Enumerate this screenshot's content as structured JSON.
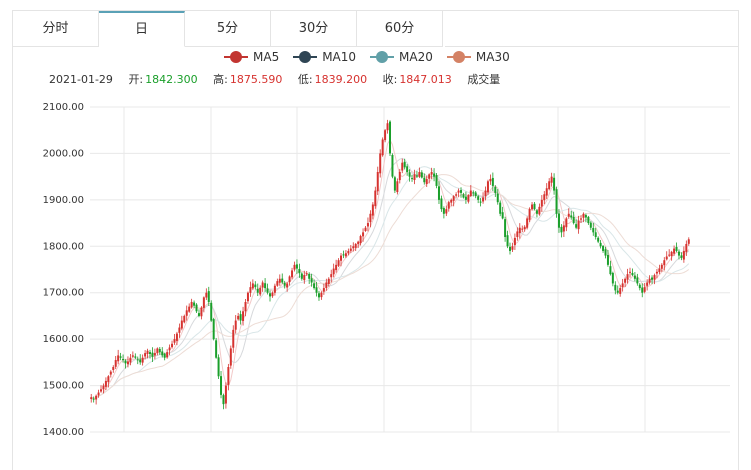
{
  "tabs": [
    {
      "label": "分时",
      "active": false
    },
    {
      "label": "日",
      "active": true
    },
    {
      "label": "5分",
      "active": false
    },
    {
      "label": "30分",
      "active": false
    },
    {
      "label": "60分",
      "active": false
    }
  ],
  "legend": [
    {
      "label": "MA5",
      "color": "#c23531"
    },
    {
      "label": "MA10",
      "color": "#2f4554"
    },
    {
      "label": "MA20",
      "color": "#61a0a8"
    },
    {
      "label": "MA30",
      "color": "#d48265"
    }
  ],
  "ohlc": {
    "date": "2021-01-29",
    "open_label": "开:",
    "open": "1842.300",
    "high_label": "高:",
    "high": "1875.590",
    "low_label": "低:",
    "low": "1839.200",
    "close_label": "收:",
    "close": "1847.013",
    "volume_label": "成交量"
  },
  "colors": {
    "up": "#d6322f",
    "down": "#1a9f2a",
    "grid": "#e8e8e8"
  },
  "chart_data": {
    "type": "candlestick",
    "ylim": [
      1400,
      2100
    ],
    "yticks": [
      "2100.00",
      "2000.00",
      "1900.00",
      "1800.00",
      "1700.00",
      "1600.00",
      "1500.00",
      "1400.00"
    ],
    "close_path": [
      1475,
      1470,
      1478,
      1485,
      1492,
      1500,
      1510,
      1520,
      1530,
      1540,
      1555,
      1565,
      1560,
      1555,
      1548,
      1552,
      1560,
      1565,
      1560,
      1555,
      1550,
      1560,
      1570,
      1575,
      1568,
      1562,
      1570,
      1580,
      1572,
      1565,
      1560,
      1572,
      1582,
      1590,
      1600,
      1612,
      1625,
      1640,
      1650,
      1662,
      1670,
      1680,
      1672,
      1660,
      1650,
      1668,
      1690,
      1700,
      1680,
      1640,
      1600,
      1560,
      1520,
      1480,
      1460,
      1500,
      1540,
      1580,
      1620,
      1640,
      1650,
      1640,
      1660,
      1680,
      1700,
      1712,
      1720,
      1712,
      1700,
      1710,
      1722,
      1710,
      1700,
      1692,
      1700,
      1715,
      1725,
      1730,
      1722,
      1715,
      1720,
      1735,
      1748,
      1760,
      1752,
      1742,
      1730,
      1738,
      1742,
      1730,
      1722,
      1710,
      1700,
      1690,
      1700,
      1710,
      1722,
      1730,
      1740,
      1752,
      1760,
      1770,
      1780,
      1782,
      1785,
      1790,
      1795,
      1800,
      1805,
      1810,
      1822,
      1830,
      1840,
      1850,
      1870,
      1890,
      1920,
      1960,
      2000,
      2030,
      2050,
      2065,
      2000,
      1950,
      1920,
      1940,
      1960,
      1980,
      1970,
      1960,
      1950,
      1945,
      1955,
      1950,
      1960,
      1948,
      1938,
      1945,
      1955,
      1960,
      1950,
      1930,
      1900,
      1880,
      1870,
      1880,
      1895,
      1900,
      1908,
      1912,
      1920,
      1915,
      1905,
      1900,
      1910,
      1920,
      1915,
      1908,
      1900,
      1895,
      1905,
      1920,
      1940,
      1945,
      1930,
      1915,
      1895,
      1870,
      1860,
      1820,
      1800,
      1790,
      1800,
      1818,
      1832,
      1840,
      1838,
      1842,
      1860,
      1880,
      1890,
      1880,
      1870,
      1885,
      1900,
      1912,
      1925,
      1940,
      1950,
      1920,
      1870,
      1840,
      1830,
      1845,
      1860,
      1870,
      1862,
      1850,
      1840,
      1855,
      1860,
      1870,
      1862,
      1850,
      1840,
      1830,
      1820,
      1810,
      1800,
      1790,
      1780,
      1760,
      1740,
      1720,
      1705,
      1700,
      1710,
      1720,
      1730,
      1740,
      1745,
      1738,
      1730,
      1720,
      1710,
      1700,
      1712,
      1722,
      1730,
      1728,
      1738,
      1745,
      1752,
      1760,
      1770,
      1778,
      1782,
      1788,
      1795,
      1790,
      1780,
      1775,
      1790,
      1805,
      1815
    ]
  }
}
